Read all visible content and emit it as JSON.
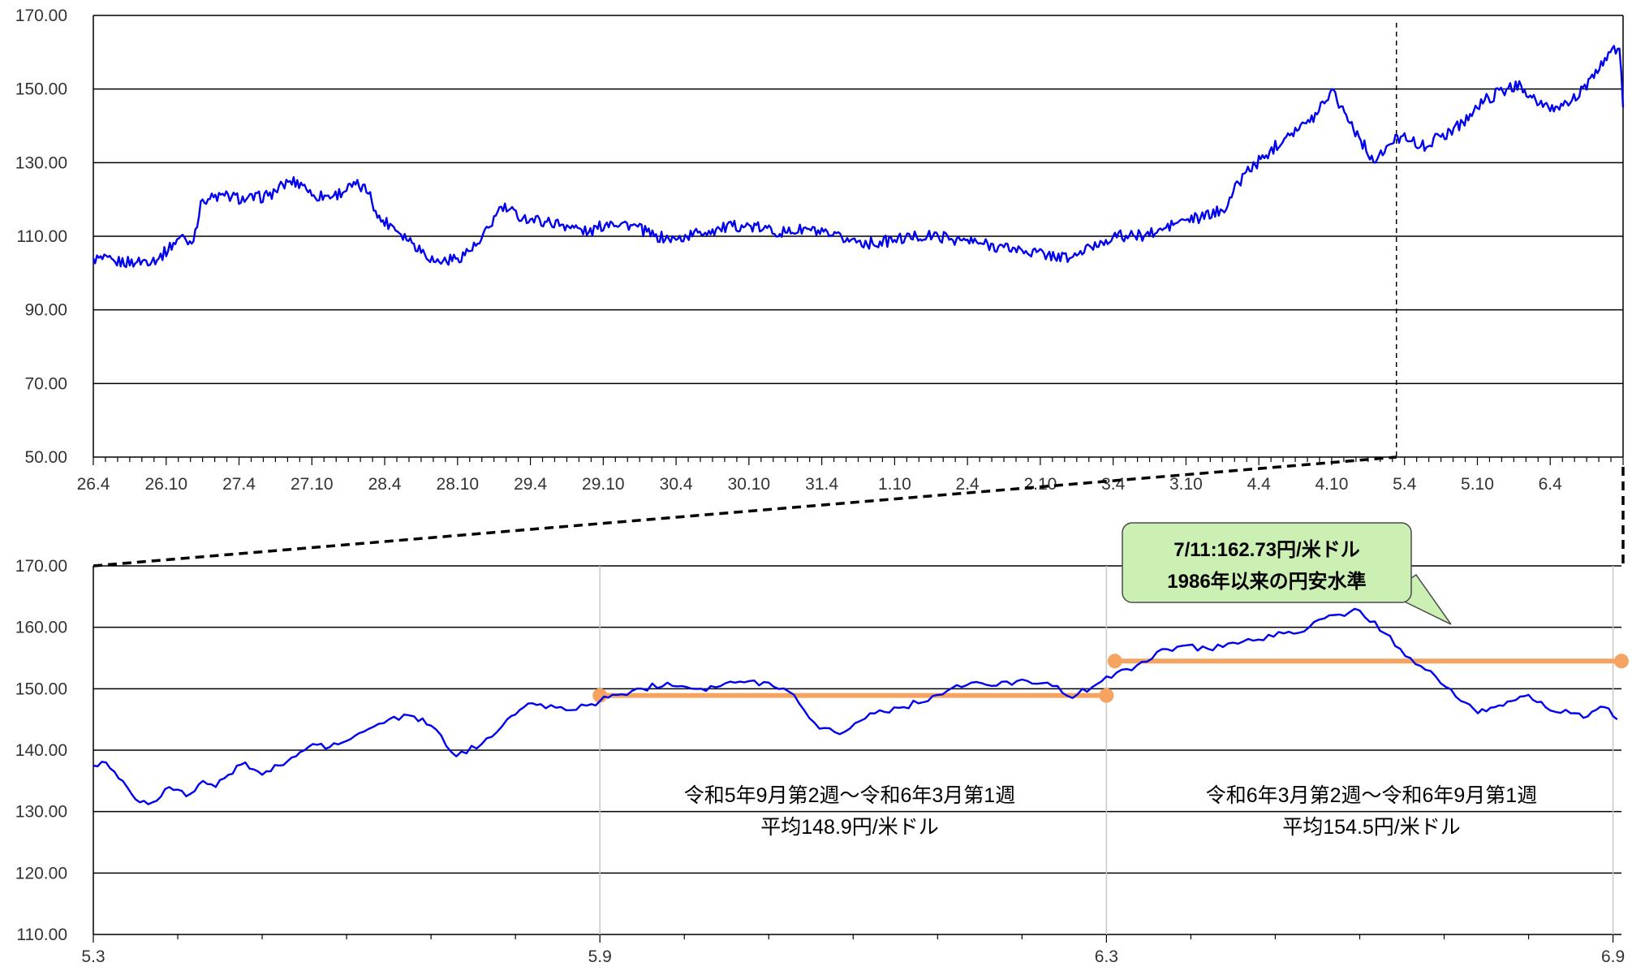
{
  "chart_data": [
    {
      "type": "line",
      "title": "",
      "xlabel": "",
      "ylabel": "",
      "ylim": [
        50,
        170
      ],
      "yticks": [
        "50.00",
        "70.00",
        "90.00",
        "110.00",
        "130.00",
        "150.00",
        "170.00"
      ],
      "xticks": [
        "26.4",
        "26.10",
        "27.4",
        "27.10",
        "28.4",
        "28.10",
        "29.4",
        "29.10",
        "30.4",
        "30.10",
        "31.4",
        "1.10",
        "2.4",
        "2.10",
        "3.4",
        "3.10",
        "4.4",
        "4.10",
        "5.4",
        "5.10",
        "6.4"
      ],
      "grid": true,
      "line_color": "#0000ee",
      "marker_tick": "5.3",
      "series": [
        {
          "x_index": [
            0,
            0.3,
            0.6,
            0.9,
            1.2,
            1.35,
            1.5,
            1.8,
            2.1,
            2.4,
            2.7,
            2.9,
            3.0,
            3.3,
            3.6,
            3.8,
            3.9,
            4.1,
            4.4,
            4.7,
            5.0,
            5.3,
            5.6,
            5.9,
            6.2,
            6.5,
            6.8,
            7.1,
            7.4,
            7.7,
            8.0,
            8.3,
            8.6,
            8.9,
            9.2,
            9.5,
            9.8,
            10.1,
            10.4,
            10.7,
            11.0,
            11.3,
            11.6,
            11.9,
            12.2,
            12.5,
            12.8,
            13.1,
            13.4,
            13.7,
            14.0,
            14.3,
            14.6,
            14.9,
            15.2,
            15.5,
            15.8,
            16.1,
            16.4,
            16.7,
            17.0,
            17.2,
            17.4,
            17.6,
            17.8,
            18.0,
            18.2,
            18.5,
            18.8,
            19.1,
            19.4,
            19.6,
            19.8,
            20.0,
            20.3,
            20.6,
            20.8,
            20.95,
            21.0
          ],
          "values": [
            104,
            103,
            103,
            104,
            110,
            108,
            120,
            121,
            120,
            121,
            125,
            124,
            121,
            121,
            124,
            122,
            115,
            113,
            108,
            103,
            104,
            108,
            118,
            115,
            114,
            113,
            111,
            114,
            113,
            110,
            109,
            111,
            112,
            113,
            112,
            111,
            112,
            110,
            109,
            108,
            109,
            110,
            110,
            109,
            108,
            107,
            106,
            105,
            104,
            107,
            110,
            110,
            111,
            114,
            115,
            117,
            127,
            132,
            138,
            141,
            150,
            143,
            136,
            130,
            135,
            138,
            134,
            137,
            141,
            147,
            150,
            151,
            147,
            144,
            147,
            153,
            160,
            161,
            145
          ]
        }
      ]
    },
    {
      "type": "line",
      "title": "",
      "xlabel": "",
      "ylabel": "",
      "ylim": [
        110,
        170
      ],
      "yticks": [
        "110.00",
        "120.00",
        "130.00",
        "140.00",
        "150.00",
        "160.00",
        "170.00"
      ],
      "xticks": [
        "5.3",
        "5.9",
        "6.3",
        "6.9"
      ],
      "x_range_months": [
        0,
        18.1
      ],
      "grid": true,
      "line_color": "#0000ee",
      "series": [
        {
          "x_months": [
            0,
            0.15,
            0.25,
            0.4,
            0.5,
            0.7,
            0.9,
            1.1,
            1.3,
            1.45,
            1.6,
            1.8,
            2.0,
            2.2,
            2.4,
            2.6,
            2.8,
            3.0,
            3.2,
            3.5,
            3.8,
            4.0,
            4.3,
            4.6,
            4.9,
            5.1,
            5.3,
            5.6,
            5.9,
            6.0,
            6.2,
            6.5,
            6.8,
            7.2,
            7.6,
            8.0,
            8.3,
            8.6,
            8.9,
            9.2,
            9.6,
            10.0,
            10.4,
            10.7,
            11.0,
            11.3,
            11.6,
            12.0,
            12.3,
            12.6,
            12.9,
            13.2,
            13.5,
            13.8,
            14.1,
            14.4,
            14.7,
            15.0,
            15.3,
            15.6,
            15.9,
            16.2,
            16.4,
            16.6,
            16.8,
            17.0,
            17.2,
            17.5,
            17.7,
            17.9,
            18.05
          ],
          "values": [
            137.5,
            138,
            136.5,
            134,
            132,
            131.5,
            134,
            132.5,
            135,
            134,
            136,
            138,
            136,
            137.5,
            139,
            141,
            140.5,
            141.5,
            143,
            145,
            145.5,
            144,
            139,
            141,
            145,
            147,
            147.5,
            146.5,
            147.5,
            148,
            149,
            150,
            151,
            150,
            151,
            151,
            149,
            143.5,
            143,
            146,
            147,
            149,
            151,
            150.5,
            151.5,
            151,
            148.5,
            152,
            153,
            156,
            157,
            156.5,
            157.5,
            158,
            159,
            160,
            162,
            162.73,
            159,
            155,
            152,
            148,
            146,
            147,
            148,
            149,
            147,
            146,
            145.5,
            147,
            145
          ]
        }
      ]
    }
  ],
  "annotations": {
    "callout": [
      "7/11:162.73円/米ドル",
      "1986年以来の円安水準"
    ],
    "period1": {
      "label": "令和5年9月第2週～令和6年3月第1週",
      "avg": "平均148.9円/米ドル",
      "value": 148.9,
      "x_range_months": [
        6.0,
        12.0
      ]
    },
    "period2": {
      "label": "令和6年3月第2週～令和6年9月第1週",
      "avg": "平均154.5円/米ドル",
      "value": 154.5,
      "x_range_months": [
        12.1,
        18.1
      ]
    },
    "average_line_color": "#f4a460"
  }
}
